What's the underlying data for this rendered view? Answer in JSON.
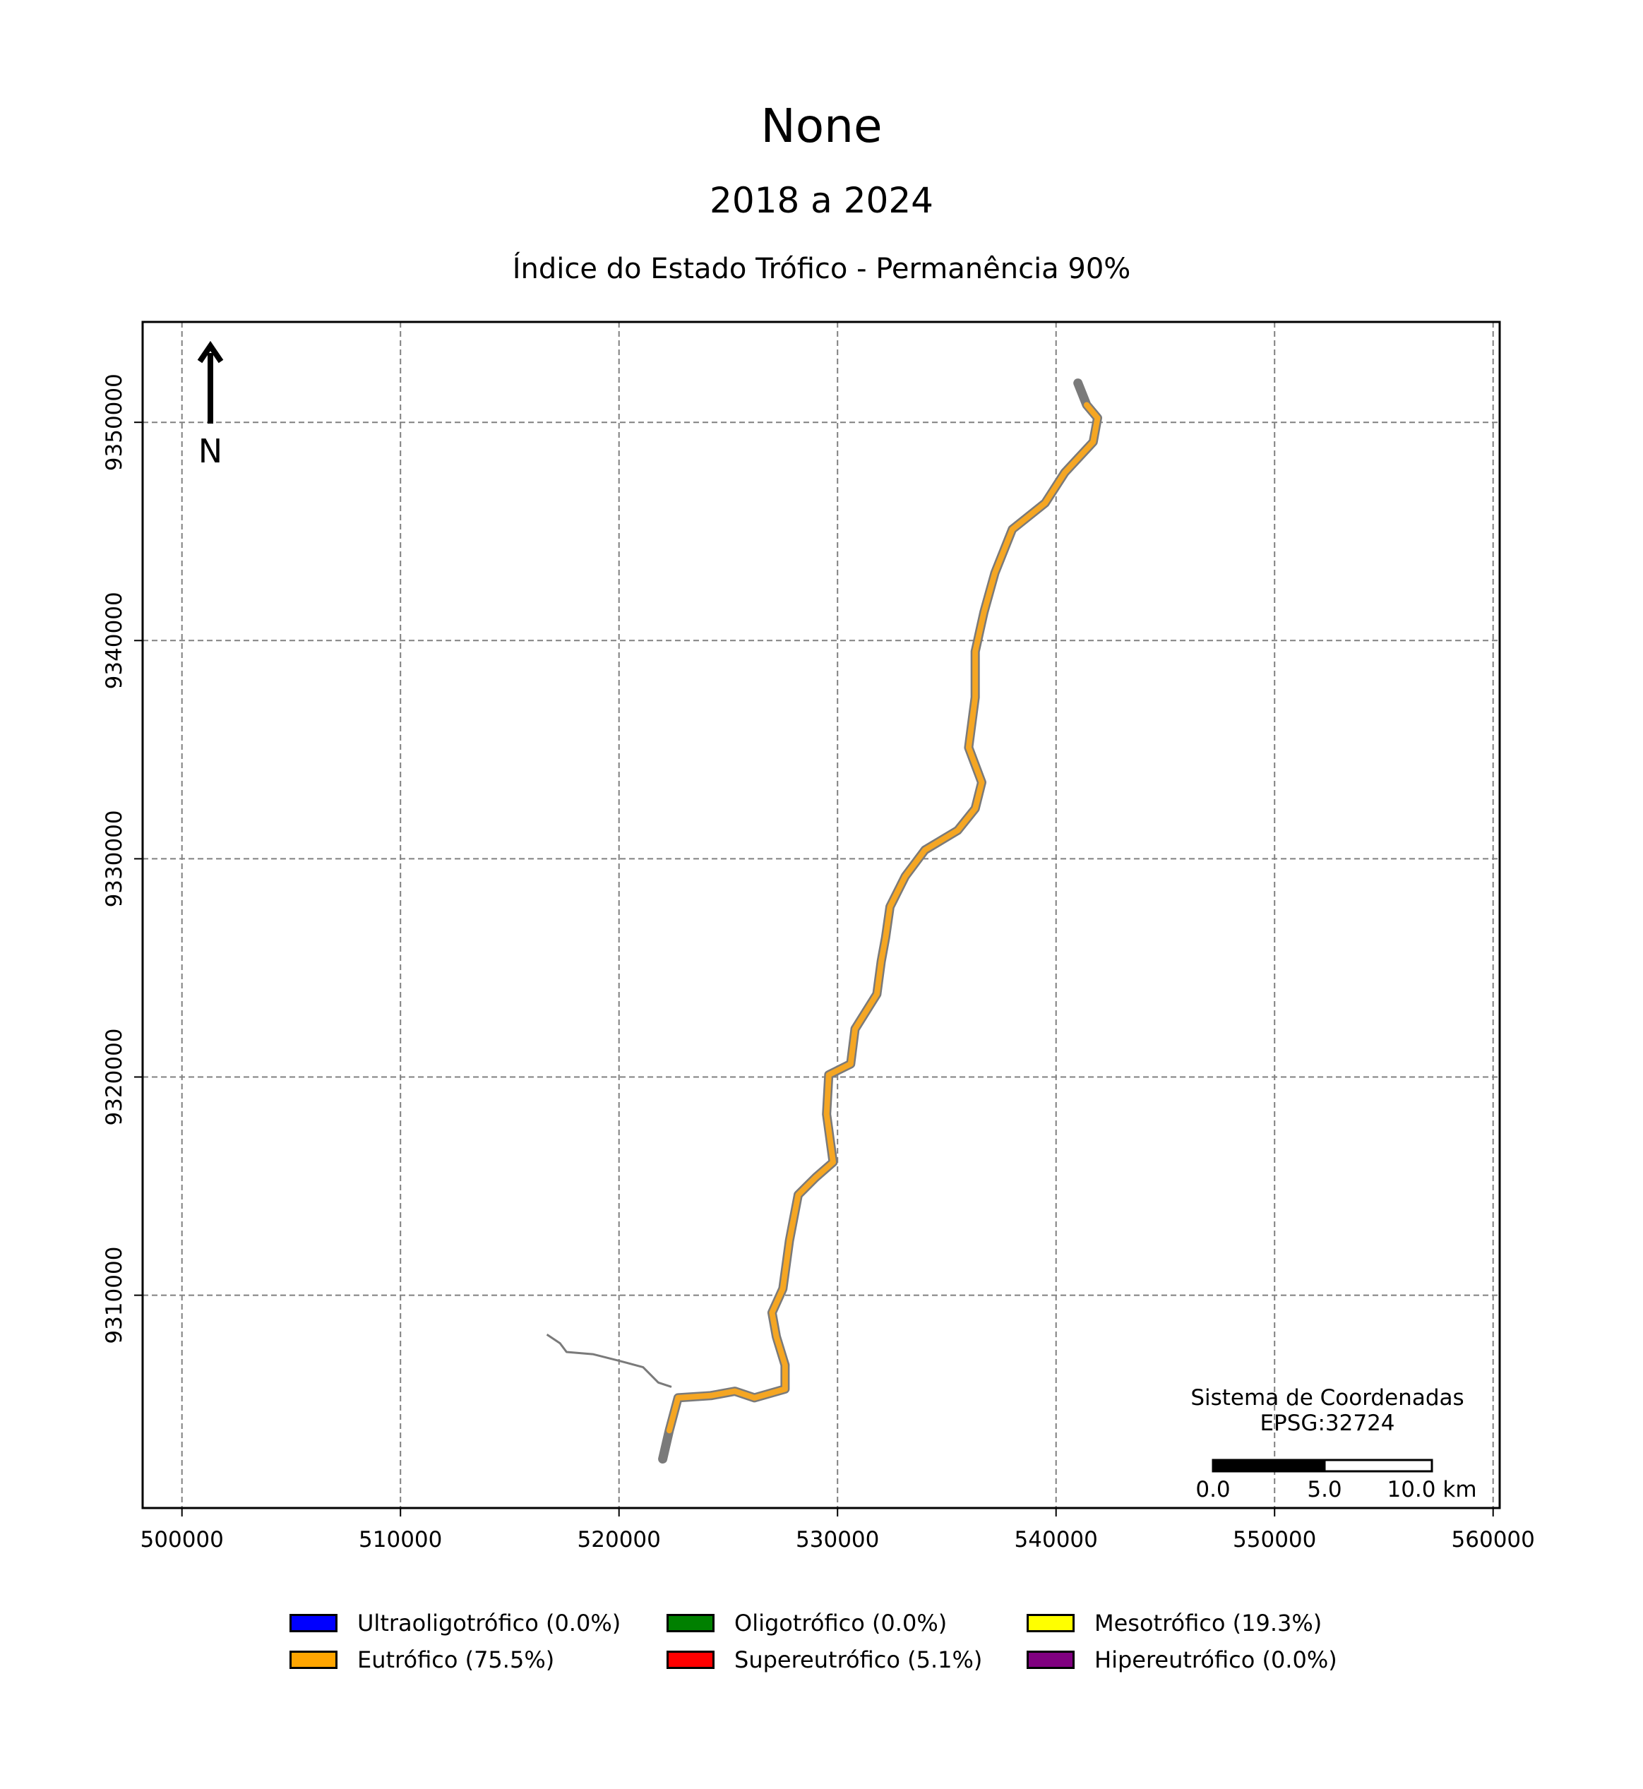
{
  "title": "None",
  "subtitle": "2018 a 2024",
  "index_title": "Índice do Estado Trófico - Permanência 90%",
  "north_label": "N",
  "map": {
    "x_ticks": [
      "500000",
      "510000",
      "520000",
      "530000",
      "540000",
      "550000",
      "560000"
    ],
    "y_ticks": [
      "9310000",
      "9320000",
      "9330000",
      "9340000",
      "9350000"
    ],
    "x_range": [
      498200,
      560300
    ],
    "y_range": [
      9300250,
      9354600
    ],
    "grid": true,
    "river_color": "#f5a623",
    "outline_color": "#7a7a7a",
    "river_path_utm": [
      [
        522000,
        9302500
      ],
      [
        522300,
        9303800
      ],
      [
        522700,
        9305300
      ],
      [
        524200,
        9305400
      ],
      [
        525300,
        9305600
      ],
      [
        526200,
        9305300
      ],
      [
        527600,
        9305700
      ],
      [
        527600,
        9306800
      ],
      [
        527200,
        9308100
      ],
      [
        527000,
        9309200
      ],
      [
        527500,
        9310300
      ],
      [
        527800,
        9312500
      ],
      [
        528200,
        9314600
      ],
      [
        529000,
        9315400
      ],
      [
        529800,
        9316100
      ],
      [
        529500,
        9318300
      ],
      [
        529600,
        9320100
      ],
      [
        530600,
        9320600
      ],
      [
        530800,
        9322200
      ],
      [
        531800,
        9323800
      ],
      [
        532000,
        9325300
      ],
      [
        532200,
        9326400
      ],
      [
        532400,
        9327800
      ],
      [
        533100,
        9329200
      ],
      [
        534000,
        9330400
      ],
      [
        535500,
        9331300
      ],
      [
        536300,
        9332300
      ],
      [
        536600,
        9333500
      ],
      [
        536000,
        9335100
      ],
      [
        536300,
        9337400
      ],
      [
        536300,
        9339500
      ],
      [
        536700,
        9341300
      ],
      [
        537200,
        9343100
      ],
      [
        538000,
        9345100
      ],
      [
        539500,
        9346300
      ],
      [
        540400,
        9347700
      ],
      [
        541700,
        9349100
      ],
      [
        541900,
        9350200
      ],
      [
        541400,
        9350800
      ],
      [
        541000,
        9351800
      ]
    ],
    "tributary_utm": [
      [
        516700,
        9308200
      ],
      [
        517300,
        9307800
      ],
      [
        517600,
        9307400
      ],
      [
        518800,
        9307300
      ],
      [
        520000,
        9307000
      ],
      [
        521100,
        9306700
      ],
      [
        521800,
        9306000
      ],
      [
        522400,
        9305800
      ]
    ],
    "scale_bar": {
      "labels": [
        "0.0",
        "5.0",
        "10.0 km"
      ],
      "segments_km": [
        5,
        5
      ]
    },
    "crs_line1": "Sistema de Coordenadas",
    "crs_line2": "EPSG:32724"
  },
  "legend": [
    {
      "label": "Ultraoligotrófico (0.0%)",
      "color": "#0000ff",
      "percent": 0.0
    },
    {
      "label": "Eutrófico (75.5%)",
      "color": "#ffa500",
      "percent": 75.5
    },
    {
      "label": "Oligotrófico (0.0%)",
      "color": "#008000",
      "percent": 0.0
    },
    {
      "label": "Supereutrófico (5.1%)",
      "color": "#ff0000",
      "percent": 5.1
    },
    {
      "label": "Mesotrófico (19.3%)",
      "color": "#ffff00",
      "percent": 19.3
    },
    {
      "label": "Hipereutrófico (0.0%)",
      "color": "#800080",
      "percent": 0.0
    }
  ]
}
